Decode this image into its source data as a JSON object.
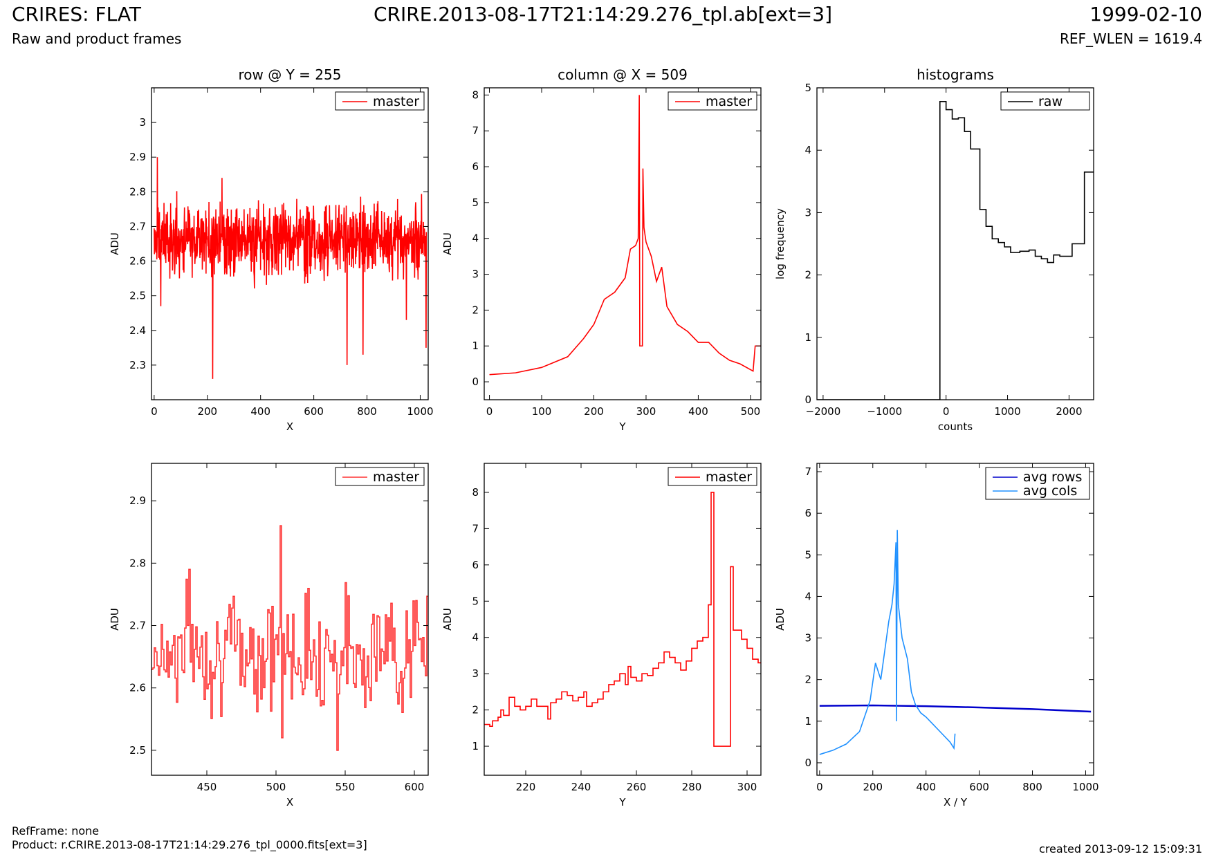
{
  "header": {
    "title_left": "CRIRES: FLAT",
    "title_center": "CRIRE.2013-08-17T21:14:29.276_tpl.ab[ext=3]",
    "title_right": "1999-02-10",
    "subtitle_left": "Raw and product frames",
    "subtitle_right": "REF_WLEN = 1619.4"
  },
  "footer": {
    "refframe": "RefFrame: none",
    "product": "Product: r.CRIRE.2013-08-17T21:14:29.276_tpl_0000.fits[ext=3]",
    "created": "created 2013-09-12 15:09:31"
  },
  "chart_data": [
    {
      "id": "row-full",
      "type": "line",
      "title": "row @ Y = 255",
      "xlabel": "X",
      "ylabel": "ADU",
      "xlim": [
        -10,
        1030
      ],
      "ylim": [
        2.2,
        3.1
      ],
      "xticks": [
        0,
        200,
        400,
        600,
        800,
        1000
      ],
      "yticks": [
        2.3,
        2.4,
        2.5,
        2.6,
        2.7,
        2.8,
        2.9,
        3.0
      ],
      "legend": {
        "position": "top-right",
        "entries": [
          "master"
        ]
      },
      "series": [
        {
          "name": "master",
          "color": "#ff0000",
          "noise": {
            "n": 1024,
            "x0": 0,
            "dx": 1,
            "base": 2.66,
            "amp": 0.07,
            "seed": 11
          },
          "spikes": [
            [
              12,
              2.9
            ],
            [
              25,
              2.47
            ],
            [
              220,
              2.26
            ],
            [
              255,
              2.84
            ],
            [
              725,
              2.3
            ],
            [
              785,
              2.33
            ],
            [
              948,
              2.43
            ],
            [
              1022,
              2.35
            ]
          ]
        }
      ]
    },
    {
      "id": "col-full",
      "type": "line",
      "title": "column @ X = 509",
      "xlabel": "Y",
      "ylabel": "ADU",
      "xlim": [
        -10,
        520
      ],
      "ylim": [
        -0.5,
        8.2
      ],
      "xticks": [
        0,
        100,
        200,
        300,
        400,
        500
      ],
      "yticks": [
        0,
        1,
        2,
        3,
        4,
        5,
        6,
        7,
        8
      ],
      "legend": {
        "position": "top-right",
        "entries": [
          "master"
        ]
      },
      "series": [
        {
          "name": "master",
          "color": "#ff0000",
          "points": [
            [
              0,
              0.2
            ],
            [
              50,
              0.25
            ],
            [
              100,
              0.4
            ],
            [
              150,
              0.7
            ],
            [
              180,
              1.2
            ],
            [
              200,
              1.6
            ],
            [
              220,
              2.3
            ],
            [
              240,
              2.5
            ],
            [
              260,
              2.9
            ],
            [
              270,
              3.7
            ],
            [
              280,
              3.8
            ],
            [
              285,
              4.0
            ],
            [
              287,
              8.0
            ],
            [
              288,
              1.0
            ],
            [
              293,
              1.0
            ],
            [
              294,
              5.95
            ],
            [
              296,
              4.3
            ],
            [
              300,
              3.9
            ],
            [
              310,
              3.5
            ],
            [
              320,
              2.8
            ],
            [
              330,
              3.2
            ],
            [
              340,
              2.1
            ],
            [
              360,
              1.6
            ],
            [
              380,
              1.4
            ],
            [
              400,
              1.1
            ],
            [
              420,
              1.1
            ],
            [
              440,
              0.8
            ],
            [
              460,
              0.6
            ],
            [
              480,
              0.5
            ],
            [
              505,
              0.3
            ],
            [
              509,
              1.0
            ],
            [
              520,
              1.0
            ]
          ]
        }
      ]
    },
    {
      "id": "histograms",
      "type": "line",
      "title": "histograms",
      "xlabel": "counts",
      "ylabel": "log frequency",
      "xlim": [
        -2100,
        2400
      ],
      "ylim": [
        0,
        5
      ],
      "xticks": [
        -2000,
        -1000,
        0,
        1000,
        2000
      ],
      "yticks": [
        0,
        1,
        2,
        3,
        4,
        5
      ],
      "legend": {
        "position": "top-right",
        "entries": [
          "raw"
        ]
      },
      "series": [
        {
          "name": "raw",
          "color": "#000000",
          "steps": [
            [
              -2100,
              0
            ],
            [
              -100,
              4.78
            ],
            [
              0,
              4.65
            ],
            [
              100,
              4.5
            ],
            [
              200,
              4.52
            ],
            [
              300,
              4.3
            ],
            [
              400,
              4.02
            ],
            [
              550,
              3.05
            ],
            [
              650,
              2.78
            ],
            [
              750,
              2.58
            ],
            [
              850,
              2.52
            ],
            [
              950,
              2.45
            ],
            [
              1050,
              2.36
            ],
            [
              1200,
              2.38
            ],
            [
              1350,
              2.4
            ],
            [
              1450,
              2.3
            ],
            [
              1550,
              2.26
            ],
            [
              1650,
              2.2
            ],
            [
              1750,
              2.32
            ],
            [
              1850,
              2.3
            ],
            [
              2050,
              2.5
            ],
            [
              2250,
              3.65
            ],
            [
              2400,
              3.65
            ]
          ]
        }
      ]
    },
    {
      "id": "row-zoom",
      "type": "line",
      "title": "",
      "xlabel": "X",
      "ylabel": "ADU",
      "xlim": [
        410,
        610
      ],
      "ylim": [
        2.46,
        2.96
      ],
      "xticks": [
        450,
        500,
        550,
        600
      ],
      "yticks": [
        2.5,
        2.6,
        2.7,
        2.8,
        2.9
      ],
      "legend": {
        "position": "top-right",
        "entries": [
          "master"
        ]
      },
      "series": [
        {
          "name": "master",
          "color": "#ff3333",
          "noise": {
            "n": 200,
            "x0": 410,
            "dx": 1,
            "base": 2.66,
            "amp": 0.065,
            "seed": 7,
            "step": true
          },
          "spikes": [
            [
              503,
              2.86
            ],
            [
              504,
              2.52
            ],
            [
              544,
              2.5
            ],
            [
              437,
              2.79
            ]
          ]
        }
      ]
    },
    {
      "id": "col-zoom",
      "type": "line",
      "title": "",
      "xlabel": "Y",
      "ylabel": "ADU",
      "xlim": [
        205,
        305
      ],
      "ylim": [
        0.2,
        8.8
      ],
      "xticks": [
        220,
        240,
        260,
        280,
        300
      ],
      "yticks": [
        1,
        2,
        3,
        4,
        5,
        6,
        7,
        8
      ],
      "legend": {
        "position": "top-right",
        "entries": [
          "master"
        ]
      },
      "series": [
        {
          "name": "master",
          "color": "#ff0000",
          "steps": [
            [
              205,
              1.6
            ],
            [
              207,
              1.55
            ],
            [
              208,
              1.7
            ],
            [
              210,
              1.8
            ],
            [
              211,
              2.0
            ],
            [
              212,
              1.85
            ],
            [
              214,
              2.35
            ],
            [
              216,
              2.1
            ],
            [
              218,
              2.0
            ],
            [
              220,
              2.1
            ],
            [
              222,
              2.3
            ],
            [
              224,
              2.1
            ],
            [
              226,
              2.1
            ],
            [
              228,
              1.75
            ],
            [
              229,
              2.2
            ],
            [
              231,
              2.3
            ],
            [
              233,
              2.5
            ],
            [
              235,
              2.4
            ],
            [
              237,
              2.25
            ],
            [
              239,
              2.35
            ],
            [
              241,
              2.5
            ],
            [
              242,
              2.1
            ],
            [
              244,
              2.2
            ],
            [
              246,
              2.3
            ],
            [
              248,
              2.5
            ],
            [
              250,
              2.7
            ],
            [
              252,
              2.8
            ],
            [
              254,
              3.0
            ],
            [
              256,
              2.7
            ],
            [
              257,
              3.2
            ],
            [
              258,
              2.9
            ],
            [
              260,
              2.8
            ],
            [
              262,
              3.0
            ],
            [
              264,
              2.95
            ],
            [
              266,
              3.15
            ],
            [
              268,
              3.3
            ],
            [
              270,
              3.6
            ],
            [
              272,
              3.45
            ],
            [
              274,
              3.3
            ],
            [
              276,
              3.1
            ],
            [
              278,
              3.35
            ],
            [
              280,
              3.7
            ],
            [
              282,
              3.9
            ],
            [
              284,
              4.0
            ],
            [
              286,
              4.9
            ],
            [
              287,
              8.0
            ],
            [
              288,
              1.0
            ],
            [
              294,
              5.95
            ],
            [
              295,
              4.2
            ],
            [
              297,
              4.2
            ],
            [
              298,
              3.95
            ],
            [
              300,
              3.7
            ],
            [
              302,
              3.4
            ],
            [
              304,
              3.3
            ]
          ]
        }
      ]
    },
    {
      "id": "averages",
      "type": "line",
      "title": "",
      "xlabel": "X / Y",
      "ylabel": "ADU",
      "xlim": [
        -10,
        1030
      ],
      "ylim": [
        -0.3,
        7.2
      ],
      "xticks": [
        0,
        200,
        400,
        600,
        800,
        1000
      ],
      "yticks": [
        0,
        1,
        2,
        3,
        4,
        5,
        6,
        7
      ],
      "legend": {
        "position": "top-right",
        "entries": [
          "avg rows",
          "avg cols"
        ]
      },
      "series": [
        {
          "name": "avg rows",
          "color": "#0000cc",
          "points": [
            [
              0,
              1.37
            ],
            [
              200,
              1.38
            ],
            [
              400,
              1.36
            ],
            [
              600,
              1.33
            ],
            [
              800,
              1.29
            ],
            [
              1020,
              1.23
            ]
          ]
        },
        {
          "name": "avg cols",
          "color": "#1e90ff",
          "points": [
            [
              0,
              0.2
            ],
            [
              50,
              0.3
            ],
            [
              100,
              0.45
            ],
            [
              150,
              0.75
            ],
            [
              190,
              1.5
            ],
            [
              210,
              2.4
            ],
            [
              230,
              2.0
            ],
            [
              245,
              2.7
            ],
            [
              260,
              3.4
            ],
            [
              272,
              3.8
            ],
            [
              280,
              4.3
            ],
            [
              287,
              5.3
            ],
            [
              289,
              1.0
            ],
            [
              292,
              5.6
            ],
            [
              296,
              3.8
            ],
            [
              310,
              3.0
            ],
            [
              330,
              2.5
            ],
            [
              345,
              1.7
            ],
            [
              360,
              1.4
            ],
            [
              380,
              1.2
            ],
            [
              400,
              1.1
            ],
            [
              430,
              0.9
            ],
            [
              460,
              0.7
            ],
            [
              490,
              0.5
            ],
            [
              505,
              0.35
            ],
            [
              509,
              0.7
            ]
          ]
        }
      ]
    }
  ]
}
